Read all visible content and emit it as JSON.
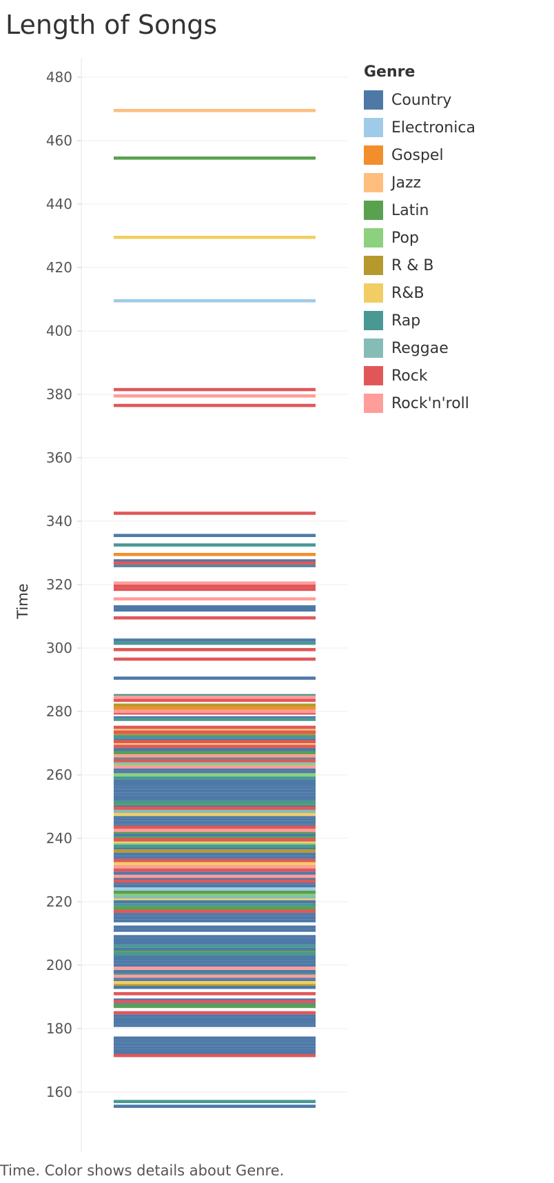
{
  "chart_data": {
    "type": "bar",
    "title": "Length of Songs",
    "ylabel": "Time",
    "ylim": [
      150,
      485
    ],
    "yticks": [
      160,
      180,
      200,
      220,
      240,
      260,
      280,
      300,
      320,
      340,
      360,
      380,
      400,
      420,
      440,
      460,
      480
    ],
    "legend_title": "Genre",
    "legend_position": "right",
    "series": [
      {
        "name": "Country",
        "color": "#4e79a7",
        "values": [
          155.5,
          172,
          173,
          174,
          175,
          176,
          177,
          181,
          182,
          183,
          184,
          187,
          189,
          193,
          195,
          196,
          198,
          200,
          201,
          202,
          203,
          205,
          207,
          208,
          209,
          211,
          212,
          214,
          215,
          216,
          220,
          225,
          226,
          227,
          229,
          231,
          234,
          235,
          237,
          241,
          244,
          245,
          246,
          247,
          250,
          252,
          253,
          254,
          255,
          256,
          257,
          258,
          261,
          262,
          265,
          268,
          271,
          278,
          290.5,
          302.5,
          312,
          313,
          326,
          327.5,
          335.5
        ]
      },
      {
        "name": "Electronica",
        "color": "#a0cbe8",
        "values": [
          224,
          248,
          409.5
        ]
      },
      {
        "name": "Gospel",
        "color": "#f28e2b",
        "values": [
          281,
          329.5
        ]
      },
      {
        "name": "Jazz",
        "color": "#ffbe7d",
        "values": [
          469.5
        ]
      },
      {
        "name": "Latin",
        "color": "#59a14f",
        "values": [
          187,
          204,
          218,
          223,
          240,
          242,
          251,
          267,
          454.5
        ]
      },
      {
        "name": "Pop",
        "color": "#8cd17d",
        "values": [
          222,
          238,
          249,
          260,
          263
        ]
      },
      {
        "name": "R & B",
        "color": "#b6992d",
        "values": [
          194,
          236,
          273,
          282
        ]
      },
      {
        "name": "R&B",
        "color": "#f1ce63",
        "values": [
          194.5,
          221,
          232,
          239,
          247.5,
          270,
          274,
          429.5
        ]
      },
      {
        "name": "Rap",
        "color": "#499894",
        "values": [
          157,
          188,
          197,
          203.5,
          206,
          219,
          237.5,
          243,
          251.5,
          259,
          265.5,
          272,
          277.5,
          285,
          301.5,
          326.5,
          332.5
        ]
      },
      {
        "name": "Reggae",
        "color": "#86bcb6",
        "values": [
          221.5,
          248.5,
          264
        ]
      },
      {
        "name": "Rock",
        "color": "#e15759",
        "values": [
          171.5,
          185,
          188.5,
          191,
          217,
          226.5,
          230,
          233,
          239.5,
          243.5,
          249.5,
          264.5,
          269,
          270.5,
          273.5,
          275,
          279.5,
          283.5,
          296.5,
          299.5,
          309.5,
          318.5,
          319.5,
          326.8,
          342.5,
          376.5,
          381.5
        ]
      },
      {
        "name": "Rock'n'roll",
        "color": "#ff9d9a",
        "values": [
          196.5,
          199,
          228,
          231,
          242.5,
          262.5,
          266,
          280,
          284.5,
          315.5,
          320.5,
          379.5
        ]
      }
    ],
    "caption": "Time.  Color shows details about Genre."
  }
}
